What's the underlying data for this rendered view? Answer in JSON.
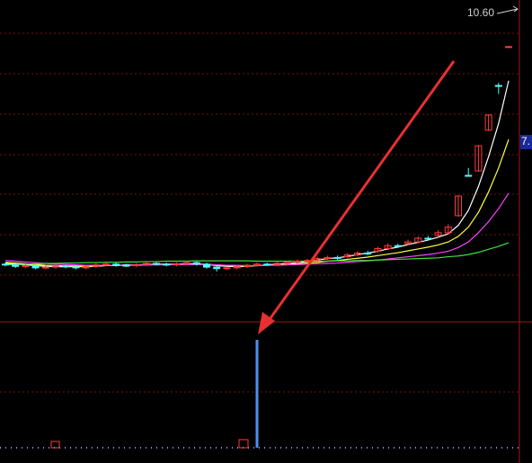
{
  "chart_data": {
    "type": "candlestick",
    "price_label": "10.60",
    "current_label": "7.",
    "ylim": [
      2.24,
      10.94
    ],
    "open": [
      3.8,
      3.78,
      3.74,
      3.76,
      3.7,
      3.72,
      3.75,
      3.73,
      3.7,
      3.74,
      3.78,
      3.8,
      3.77,
      3.76,
      3.79,
      3.82,
      3.8,
      3.78,
      3.81,
      3.84,
      3.8,
      3.72,
      3.68,
      3.7,
      3.74,
      3.77,
      3.8,
      3.79,
      3.82,
      3.85,
      3.88,
      3.9,
      3.95,
      3.98,
      4.0,
      4.05,
      4.1,
      4.15,
      4.22,
      4.3,
      4.36,
      4.4,
      4.5,
      4.58,
      4.65,
      5.11,
      6.2,
      6.32,
      7.42,
      8.63,
      9.68
    ],
    "high": [
      3.84,
      3.82,
      3.8,
      3.8,
      3.76,
      3.79,
      3.79,
      3.77,
      3.78,
      3.82,
      3.84,
      3.84,
      3.81,
      3.83,
      3.86,
      3.86,
      3.84,
      3.85,
      3.88,
      3.88,
      3.84,
      3.76,
      3.74,
      3.78,
      3.81,
      3.84,
      3.84,
      3.86,
      3.89,
      3.92,
      3.94,
      4.0,
      4.03,
      4.03,
      4.1,
      4.15,
      4.16,
      4.27,
      4.36,
      4.35,
      4.46,
      4.55,
      4.56,
      4.72,
      4.88,
      5.66,
      6.4,
      7.02,
      7.85,
      8.7,
      9.7
    ],
    "low": [
      3.74,
      3.7,
      3.7,
      3.66,
      3.66,
      3.68,
      3.69,
      3.66,
      3.66,
      3.7,
      3.74,
      3.73,
      3.72,
      3.72,
      3.75,
      3.76,
      3.74,
      3.74,
      3.77,
      3.76,
      3.68,
      3.6,
      3.64,
      3.66,
      3.7,
      3.73,
      3.75,
      3.75,
      3.78,
      3.81,
      3.84,
      3.86,
      3.91,
      3.92,
      3.96,
      4.01,
      4.04,
      4.11,
      4.18,
      4.24,
      4.32,
      4.36,
      4.44,
      4.54,
      4.6,
      5.08,
      6.18,
      6.3,
      7.4,
      8.4,
      9.66
    ],
    "close": [
      3.78,
      3.74,
      3.76,
      3.7,
      3.72,
      3.75,
      3.73,
      3.7,
      3.74,
      3.78,
      3.8,
      3.77,
      3.76,
      3.79,
      3.82,
      3.8,
      3.78,
      3.81,
      3.84,
      3.8,
      3.72,
      3.68,
      3.7,
      3.74,
      3.77,
      3.8,
      3.79,
      3.82,
      3.85,
      3.88,
      3.9,
      3.95,
      3.98,
      3.96,
      4.05,
      4.1,
      4.08,
      4.22,
      4.3,
      4.28,
      4.4,
      4.5,
      4.48,
      4.65,
      4.8,
      5.64,
      6.18,
      7.0,
      7.83,
      8.62,
      9.68
    ],
    "up_color": "#ff3b3b",
    "down_color": "#54fcfc",
    "lines": [
      {
        "color": "#ffffff",
        "values": [
          3.82,
          3.8,
          3.78,
          3.76,
          3.74,
          3.73,
          3.73,
          3.73,
          3.73,
          3.74,
          3.76,
          3.77,
          3.78,
          3.78,
          3.79,
          3.8,
          3.8,
          3.8,
          3.81,
          3.81,
          3.79,
          3.76,
          3.74,
          3.73,
          3.74,
          3.76,
          3.78,
          3.8,
          3.82,
          3.84,
          3.87,
          3.91,
          3.95,
          3.97,
          4.01,
          4.06,
          4.1,
          4.15,
          4.21,
          4.26,
          4.33,
          4.39,
          4.45,
          4.53,
          4.62,
          4.85,
          5.25,
          5.9,
          6.7,
          7.6,
          8.76
        ]
      },
      {
        "color": "#ffff40",
        "values": [
          3.85,
          3.83,
          3.81,
          3.79,
          3.77,
          3.76,
          3.75,
          3.75,
          3.74,
          3.75,
          3.76,
          3.76,
          3.77,
          3.77,
          3.78,
          3.79,
          3.79,
          3.8,
          3.8,
          3.8,
          3.79,
          3.78,
          3.76,
          3.75,
          3.75,
          3.76,
          3.77,
          3.78,
          3.8,
          3.81,
          3.83,
          3.85,
          3.88,
          3.9,
          3.93,
          3.96,
          3.99,
          4.03,
          4.07,
          4.11,
          4.16,
          4.21,
          4.26,
          4.32,
          4.4,
          4.55,
          4.8,
          5.2,
          5.75,
          6.4,
          7.17
        ]
      },
      {
        "color": "#ff40ff",
        "values": [
          3.9,
          3.88,
          3.86,
          3.84,
          3.82,
          3.8,
          3.79,
          3.78,
          3.77,
          3.77,
          3.77,
          3.77,
          3.77,
          3.78,
          3.78,
          3.78,
          3.78,
          3.79,
          3.79,
          3.79,
          3.79,
          3.78,
          3.77,
          3.77,
          3.76,
          3.76,
          3.77,
          3.77,
          3.78,
          3.79,
          3.8,
          3.81,
          3.82,
          3.83,
          3.85,
          3.87,
          3.89,
          3.91,
          3.94,
          3.97,
          4.0,
          4.03,
          4.06,
          4.1,
          4.15,
          4.25,
          4.4,
          4.65,
          4.95,
          5.3,
          5.72
        ]
      },
      {
        "color": "#40e040",
        "values": [
          3.78,
          3.79,
          3.8,
          3.81,
          3.82,
          3.82,
          3.83,
          3.83,
          3.84,
          3.84,
          3.85,
          3.85,
          3.86,
          3.86,
          3.87,
          3.87,
          3.88,
          3.88,
          3.88,
          3.89,
          3.89,
          3.89,
          3.89,
          3.89,
          3.89,
          3.88,
          3.88,
          3.88,
          3.88,
          3.88,
          3.88,
          3.88,
          3.88,
          3.89,
          3.89,
          3.9,
          3.9,
          3.91,
          3.92,
          3.93,
          3.94,
          3.95,
          3.96,
          3.97,
          4.0,
          4.02,
          4.06,
          4.12,
          4.2,
          4.28,
          4.38
        ]
      }
    ],
    "indicator": {
      "color": "#4f8ff0",
      "ylim": [
        0,
        1
      ],
      "values": [
        0,
        0,
        0,
        0,
        0,
        0,
        0,
        0,
        0,
        0,
        0,
        0,
        0,
        0,
        0,
        0,
        0,
        0,
        0,
        0,
        0,
        0,
        0,
        0,
        0,
        1,
        0,
        0,
        0,
        0,
        0,
        0,
        0,
        0,
        0,
        0,
        0,
        0,
        0,
        0,
        0,
        0,
        0,
        0,
        0,
        0,
        0,
        0,
        0,
        0,
        0
      ]
    }
  }
}
